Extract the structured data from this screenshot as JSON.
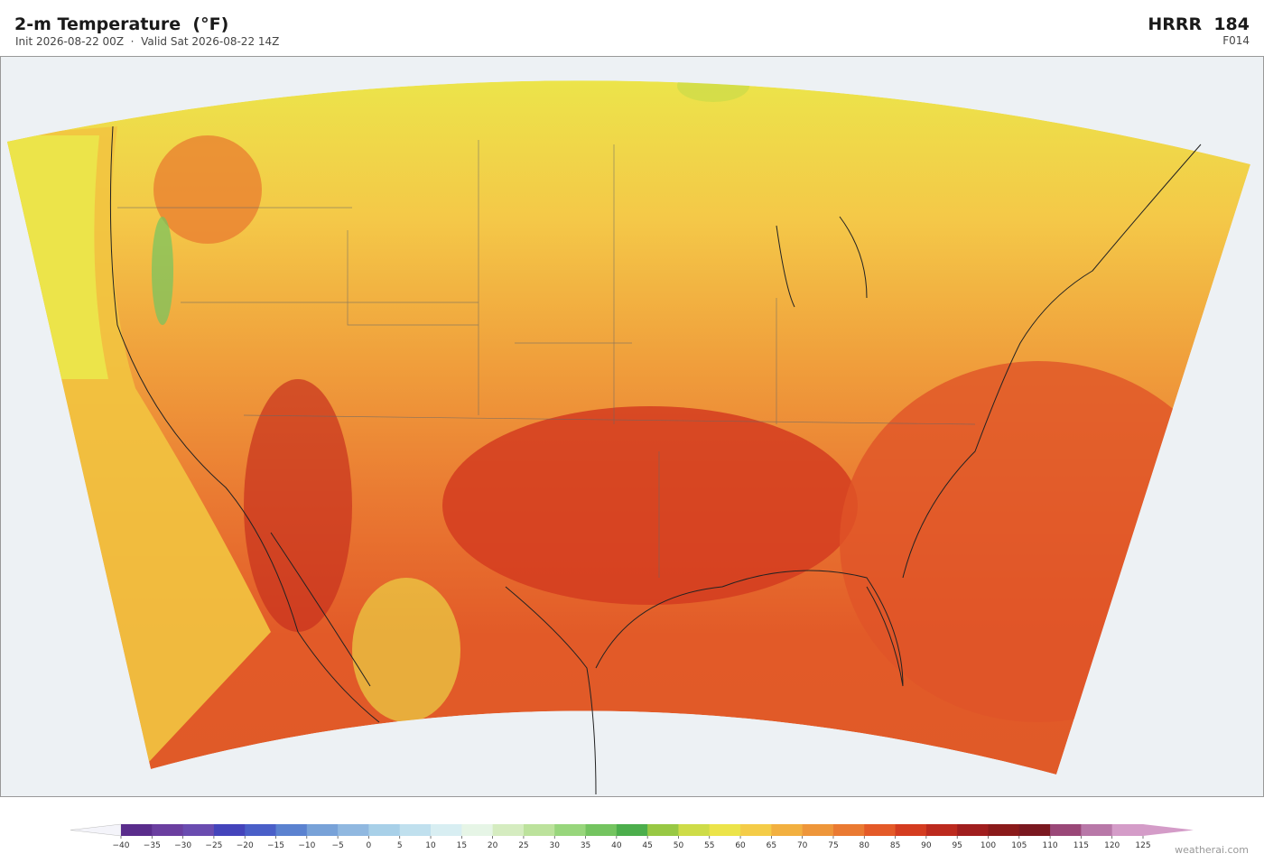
{
  "header": {
    "title": "2-m Temperature  (°F)",
    "subtitle": "Init 2026-08-22 00Z  ·  Valid Sat 2026-08-22 14Z",
    "model": "HRRR  184",
    "forecast_hour": "F014"
  },
  "colorbar": {
    "ticks": [
      {
        "value": -40,
        "label": "−40"
      },
      {
        "value": -35,
        "label": "−35"
      },
      {
        "value": -30,
        "label": "−30"
      },
      {
        "value": -25,
        "label": "−25"
      },
      {
        "value": -20,
        "label": "−20"
      },
      {
        "value": -15,
        "label": "−15"
      },
      {
        "value": -10,
        "label": "−10"
      },
      {
        "value": -5,
        "label": "−5"
      },
      0,
      5,
      10,
      15,
      20,
      25,
      30,
      35,
      40,
      45,
      50,
      55,
      60,
      65,
      70,
      75,
      80,
      85,
      90,
      95,
      100,
      105,
      110,
      115,
      120,
      125
    ],
    "colors": [
      "#5a2d8c",
      "#6b3fa0",
      "#6a4cb0",
      "#4444bb",
      "#4a5fc8",
      "#5b82d0",
      "#78a2d8",
      "#90b8e0",
      "#a8d0e8",
      "#c0e0ee",
      "#d8eef2",
      "#e6f5e6",
      "#d5ecc0",
      "#bce29c",
      "#98d67c",
      "#74c460",
      "#4cae4c",
      "#98c844",
      "#cedc48",
      "#ece44a",
      "#f4cc48",
      "#f2b040",
      "#ee963a",
      "#ea7a32",
      "#e45a28",
      "#d43c20",
      "#bc2a1e",
      "#a01e1e",
      "#8a1a1a",
      "#7a1820",
      "#9a4878",
      "#b878a8",
      "#d49cc8"
    ],
    "under_color": "#f4f4fa",
    "over_color": "#d49cc8"
  },
  "watermark": "weatherai.com"
}
